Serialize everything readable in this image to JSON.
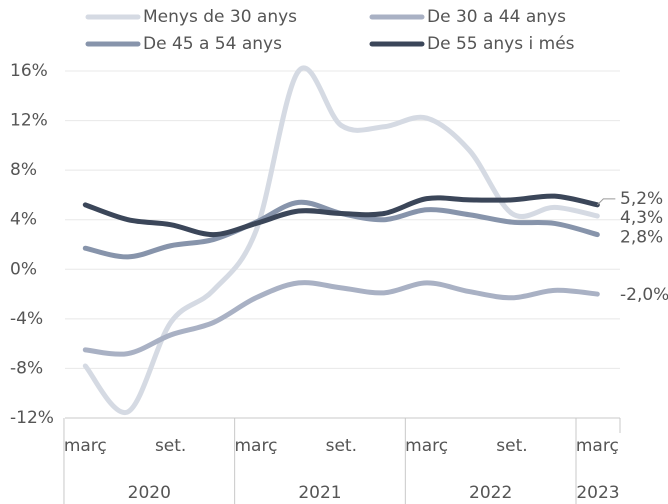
{
  "chart_data": {
    "type": "line",
    "categories": [
      "març",
      null,
      "set.",
      null,
      "març",
      null,
      "set.",
      null,
      "març",
      null,
      "set.",
      null,
      "març"
    ],
    "years": [
      "2020",
      "2021",
      "2022",
      "2023"
    ],
    "series": [
      {
        "name": "Menys de 30 anys",
        "color": "#d5dae3",
        "values": [
          -7.8,
          -11.5,
          -4.3,
          -1.7,
          3.1,
          16,
          11.6,
          11.5,
          12.2,
          9.6,
          4.5,
          5.0,
          4.3
        ],
        "value_labels": [
          null,
          null,
          null,
          null,
          null,
          null,
          null,
          null,
          null,
          null,
          null,
          null,
          "4,3%"
        ]
      },
      {
        "name": "De 30 a 44 anys",
        "color": "#a9b1c4",
        "values": [
          -6.5,
          -6.8,
          -5.3,
          -4.3,
          -2.3,
          -1.1,
          -1.5,
          -1.9,
          -1.1,
          -1.8,
          -2.3,
          -1.7,
          -2.0
        ],
        "value_labels": [
          null,
          null,
          null,
          null,
          null,
          null,
          null,
          null,
          null,
          null,
          null,
          null,
          "-2,0%"
        ]
      },
      {
        "name": "De 45 a 54 anys",
        "color": "#8794ab",
        "values": [
          1.7,
          1.0,
          1.9,
          2.4,
          3.8,
          5.4,
          4.5,
          4.0,
          4.8,
          4.4,
          3.8,
          3.7,
          2.8
        ],
        "value_labels": [
          null,
          null,
          null,
          null,
          null,
          null,
          null,
          null,
          null,
          null,
          null,
          null,
          "2,8%"
        ]
      },
      {
        "name": "De 55 anys i més",
        "color": "#3b4659",
        "values": [
          5.2,
          4.0,
          3.6,
          2.8,
          3.7,
          4.7,
          4.5,
          4.5,
          5.7,
          5.6,
          5.6,
          5.9,
          5.2
        ],
        "value_labels": [
          null,
          null,
          null,
          null,
          null,
          null,
          null,
          null,
          null,
          null,
          null,
          null,
          "5,2%"
        ]
      }
    ],
    "ylim": [
      -12,
      16
    ],
    "yticks": [
      {
        "value": -12,
        "label": "-12%"
      },
      {
        "value": -8,
        "label": "-8%"
      },
      {
        "value": -4,
        "label": "-4%"
      },
      {
        "value": 0,
        "label": "0%"
      },
      {
        "value": 4,
        "label": "4%"
      },
      {
        "value": 8,
        "label": "8%"
      },
      {
        "value": 12,
        "label": "12%"
      },
      {
        "value": 16,
        "label": "16%"
      }
    ],
    "grid": true
  }
}
